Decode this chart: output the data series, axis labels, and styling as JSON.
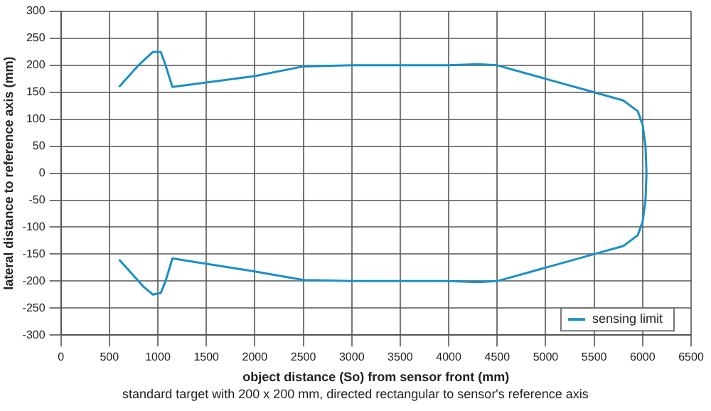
{
  "chart_data": {
    "type": "line",
    "xlabel": "object distance (So) from sensor front (mm)",
    "ylabel": "lateral distance to reference axis (mm)",
    "annotations": [
      "standard target with 200 x 200 mm, directed rectangular to sensor's reference axis"
    ],
    "xlim": [
      0,
      6500
    ],
    "xticks": [
      0,
      500,
      1000,
      1500,
      2000,
      2500,
      3000,
      3500,
      4000,
      4500,
      5000,
      5500,
      6000,
      6500
    ],
    "ylim": [
      -300,
      300
    ],
    "yticks": [
      -300,
      -250,
      -200,
      -150,
      -100,
      -50,
      0,
      50,
      100,
      150,
      200,
      250,
      300
    ],
    "grid": true,
    "legend": "bottom right",
    "marker": "none",
    "line_style": "solid",
    "series": [
      {
        "name": "sensing limit",
        "color": "#1a8fc6",
        "x": [
          600,
          800,
          950,
          1030,
          1080,
          1150,
          2000,
          2500,
          3000,
          4000,
          4300,
          4500,
          5000,
          5500,
          5800,
          5950,
          6000,
          6030,
          6040,
          6030,
          6000,
          5950,
          5800,
          5500,
          5000,
          4500,
          4300,
          4000,
          3000,
          2500,
          2000,
          1150,
          1080,
          1030,
          950,
          850,
          800,
          600
        ],
        "values": [
          160,
          200,
          225,
          225,
          200,
          160,
          180,
          198,
          200,
          200,
          202,
          200,
          175,
          150,
          135,
          115,
          90,
          50,
          0,
          -50,
          -90,
          -115,
          -135,
          -150,
          -175,
          -200,
          -202,
          -200,
          -200,
          -198,
          -182,
          -158,
          -200,
          -222,
          -225,
          -210,
          -200,
          -160
        ]
      }
    ]
  }
}
